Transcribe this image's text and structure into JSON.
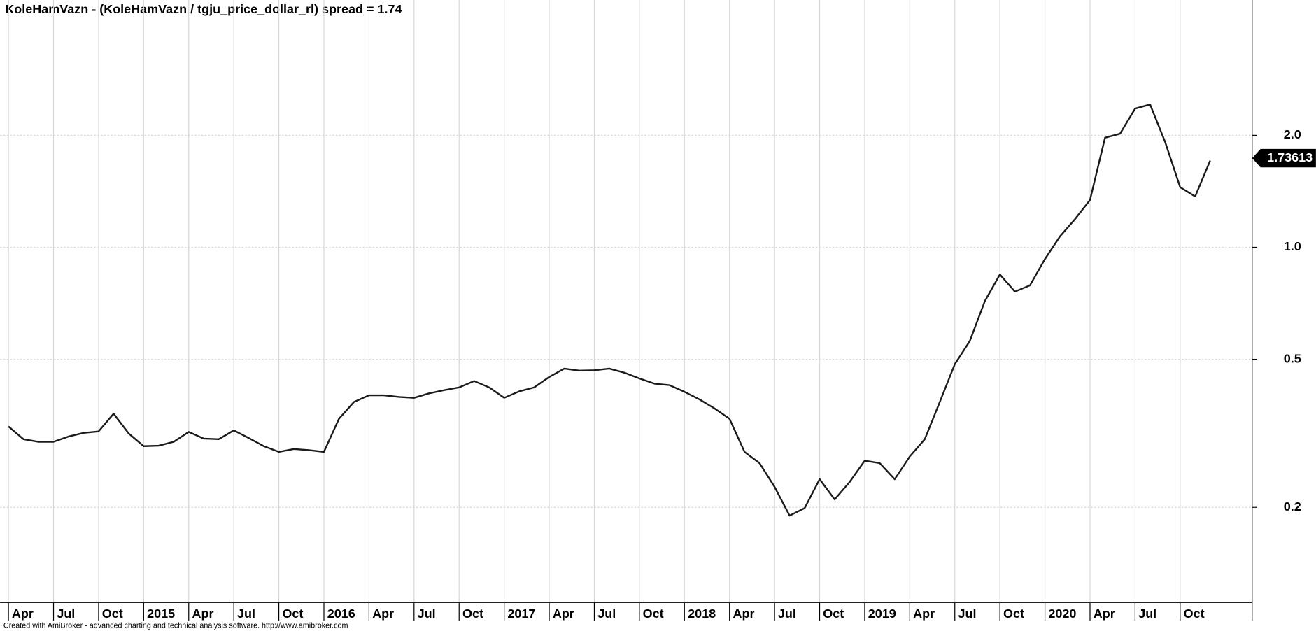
{
  "chart_data": {
    "type": "line",
    "title": "KoleHamVazn - (KoleHamVazn / tgju_price_dollar_rl) spread = 1.74",
    "footer": "Created with AmiBroker - advanced charting and technical analysis software. http://www.amibroker.com",
    "categories": [
      "Apr",
      null,
      null,
      "Jul",
      null,
      null,
      "Oct",
      null,
      null,
      "2015",
      null,
      null,
      "Apr",
      null,
      null,
      "Jul",
      null,
      null,
      "Oct",
      null,
      null,
      "2016",
      null,
      null,
      "Apr",
      null,
      null,
      "Jul",
      null,
      null,
      "Oct",
      null,
      null,
      "2017",
      null,
      null,
      "Apr",
      null,
      null,
      "Jul",
      null,
      null,
      "Oct",
      null,
      null,
      "2018",
      null,
      null,
      "Apr",
      null,
      null,
      "Jul",
      null,
      null,
      "Oct",
      null,
      null,
      "2019",
      null,
      null,
      "Apr",
      null,
      null,
      "Jul",
      null,
      null,
      "Oct",
      null,
      null,
      "2020",
      null,
      null,
      "Apr",
      null,
      null,
      "Jul",
      null,
      null,
      "Oct",
      null,
      null,
      null
    ],
    "series": [
      {
        "color": "#1a1a1a",
        "values": [
          0.33,
          0.305,
          0.3,
          0.3,
          0.31,
          0.317,
          0.32,
          0.357,
          0.316,
          0.292,
          0.293,
          0.3,
          0.319,
          0.306,
          0.305,
          0.322,
          0.307,
          0.292,
          0.282,
          0.287,
          0.285,
          0.282,
          0.346,
          0.384,
          0.4,
          0.4,
          0.396,
          0.394,
          0.405,
          0.413,
          0.42,
          0.437,
          0.42,
          0.394,
          0.41,
          0.42,
          0.448,
          0.472,
          0.466,
          0.467,
          0.472,
          0.46,
          0.444,
          0.43,
          0.426,
          0.409,
          0.39,
          0.369,
          0.346,
          0.282,
          0.263,
          0.227,
          0.19,
          0.199,
          0.238,
          0.21,
          0.234,
          0.267,
          0.263,
          0.238,
          0.274,
          0.305,
          0.384,
          0.485,
          0.56,
          0.717,
          0.845,
          0.76,
          0.79,
          0.93,
          1.07,
          1.19,
          1.34,
          1.97,
          2.02,
          2.36,
          2.42,
          1.92,
          1.45,
          1.37,
          1.71,
          null
        ]
      }
    ],
    "last_value": 1.73613,
    "ylim": [
      0.111,
      4.62
    ],
    "log_scale": true,
    "yticks": [
      0.2,
      0.5,
      {
        "value": 1,
        "label": "1.0"
      },
      {
        "value": 2,
        "label": "2.0"
      }
    ],
    "grid": true
  }
}
